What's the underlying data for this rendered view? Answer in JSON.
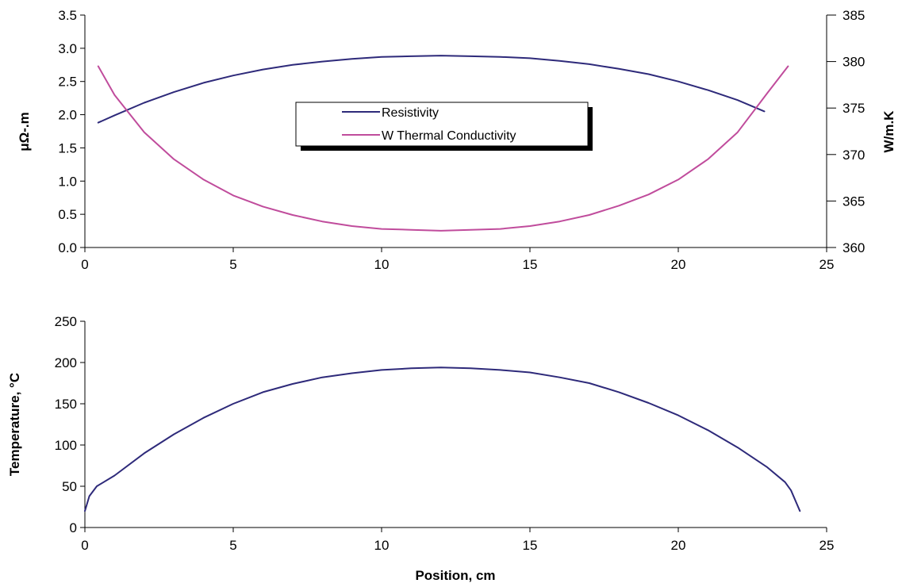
{
  "chart_data": [
    {
      "type": "line",
      "title": "",
      "xlabel": "",
      "xlim": [
        0,
        25
      ],
      "xticks": [
        0,
        5,
        10,
        15,
        20,
        25
      ],
      "left_axis": {
        "label": "μΩ-.m",
        "ylim": [
          0,
          3.5
        ],
        "ticks": [
          "0.0",
          "0.5",
          "1.0",
          "1.5",
          "2.0",
          "2.5",
          "3.0",
          "3.5"
        ]
      },
      "right_axis": {
        "label": "W/m.K",
        "ylim": [
          360,
          385
        ],
        "ticks": [
          "360",
          "365",
          "370",
          "375",
          "380",
          "385"
        ]
      },
      "grid": false,
      "legend_position": "center",
      "series": [
        {
          "name": "Resistivity",
          "axis": "left",
          "color": "#2e2a7a",
          "x": [
            0.45,
            1,
            2,
            3,
            4,
            5,
            6,
            7,
            8,
            9,
            10,
            11,
            12,
            13,
            14,
            15,
            16,
            17,
            18,
            19,
            20,
            21,
            22,
            22.9
          ],
          "y": [
            1.88,
            1.99,
            2.18,
            2.34,
            2.48,
            2.59,
            2.68,
            2.75,
            2.8,
            2.84,
            2.87,
            2.88,
            2.89,
            2.88,
            2.87,
            2.85,
            2.81,
            2.76,
            2.69,
            2.61,
            2.5,
            2.37,
            2.22,
            2.05
          ]
        },
        {
          "name": "W Thermal Conductivity",
          "axis": "right",
          "color": "#c04c9c",
          "x": [
            0.45,
            1,
            2,
            3,
            4,
            5,
            6,
            7,
            8,
            9,
            10,
            11,
            12,
            13,
            14,
            15,
            16,
            17,
            18,
            19,
            20,
            21,
            22,
            23,
            23.7
          ],
          "y": [
            379.5,
            376.4,
            372.4,
            369.5,
            367.3,
            365.6,
            364.4,
            363.5,
            362.8,
            362.3,
            362.0,
            361.9,
            361.8,
            361.9,
            362.0,
            362.3,
            362.8,
            363.5,
            364.5,
            365.7,
            367.3,
            369.5,
            372.4,
            376.6,
            379.5
          ]
        }
      ]
    },
    {
      "type": "line",
      "title": "",
      "xlabel": "Position, cm",
      "ylabel": "Temperature, °C",
      "xlim": [
        0,
        25
      ],
      "ylim": [
        0,
        250
      ],
      "xticks": [
        0,
        5,
        10,
        15,
        20,
        25
      ],
      "yticks": [
        0,
        50,
        100,
        150,
        200,
        250
      ],
      "grid": false,
      "series": [
        {
          "color": "#2e2a7a",
          "x": [
            0,
            0.15,
            0.4,
            1,
            2,
            3,
            4,
            5,
            6,
            7,
            8,
            9,
            10,
            11,
            12,
            13,
            14,
            15,
            16,
            17,
            18,
            19,
            20,
            21,
            22,
            23,
            23.6,
            23.8,
            24.1
          ],
          "y": [
            20,
            38,
            50,
            63,
            90,
            113,
            133,
            150,
            164,
            174,
            182,
            187,
            191,
            193,
            194,
            193,
            191,
            188,
            182,
            175,
            164,
            151,
            136,
            118,
            97,
            73,
            55,
            45,
            20
          ]
        }
      ]
    }
  ]
}
